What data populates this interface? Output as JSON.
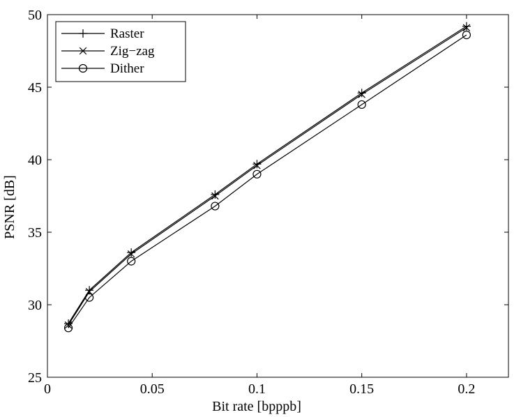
{
  "chart_data": {
    "type": "line",
    "title": "",
    "xlabel": "Bit rate [bpppb]",
    "ylabel": "PSNR [dB]",
    "xlim": [
      0,
      0.22
    ],
    "ylim": [
      25,
      50
    ],
    "xticks": [
      0,
      0.05,
      0.1,
      0.15,
      0.2
    ],
    "xtick_labels": [
      "0",
      "0.05",
      "0.1",
      "0.15",
      "0.2"
    ],
    "yticks": [
      25,
      30,
      35,
      40,
      45,
      50
    ],
    "ytick_labels": [
      "25",
      "30",
      "35",
      "40",
      "45",
      "50"
    ],
    "grid": false,
    "legend_position": "top-left",
    "series": [
      {
        "name": "Raster",
        "marker": "plus",
        "x": [
          0.01,
          0.02,
          0.04,
          0.08,
          0.1,
          0.15,
          0.2
        ],
        "values": [
          28.7,
          31.0,
          33.6,
          37.6,
          39.7,
          44.6,
          49.2
        ]
      },
      {
        "name": "Zig−zag",
        "marker": "x",
        "x": [
          0.01,
          0.02,
          0.04,
          0.08,
          0.1,
          0.15,
          0.2
        ],
        "values": [
          28.6,
          30.9,
          33.5,
          37.5,
          39.6,
          44.5,
          49.1
        ]
      },
      {
        "name": "Dither",
        "marker": "circle",
        "x": [
          0.01,
          0.02,
          0.04,
          0.08,
          0.1,
          0.15,
          0.2
        ],
        "values": [
          28.4,
          30.5,
          33.0,
          36.8,
          39.0,
          43.8,
          48.6
        ]
      }
    ]
  }
}
